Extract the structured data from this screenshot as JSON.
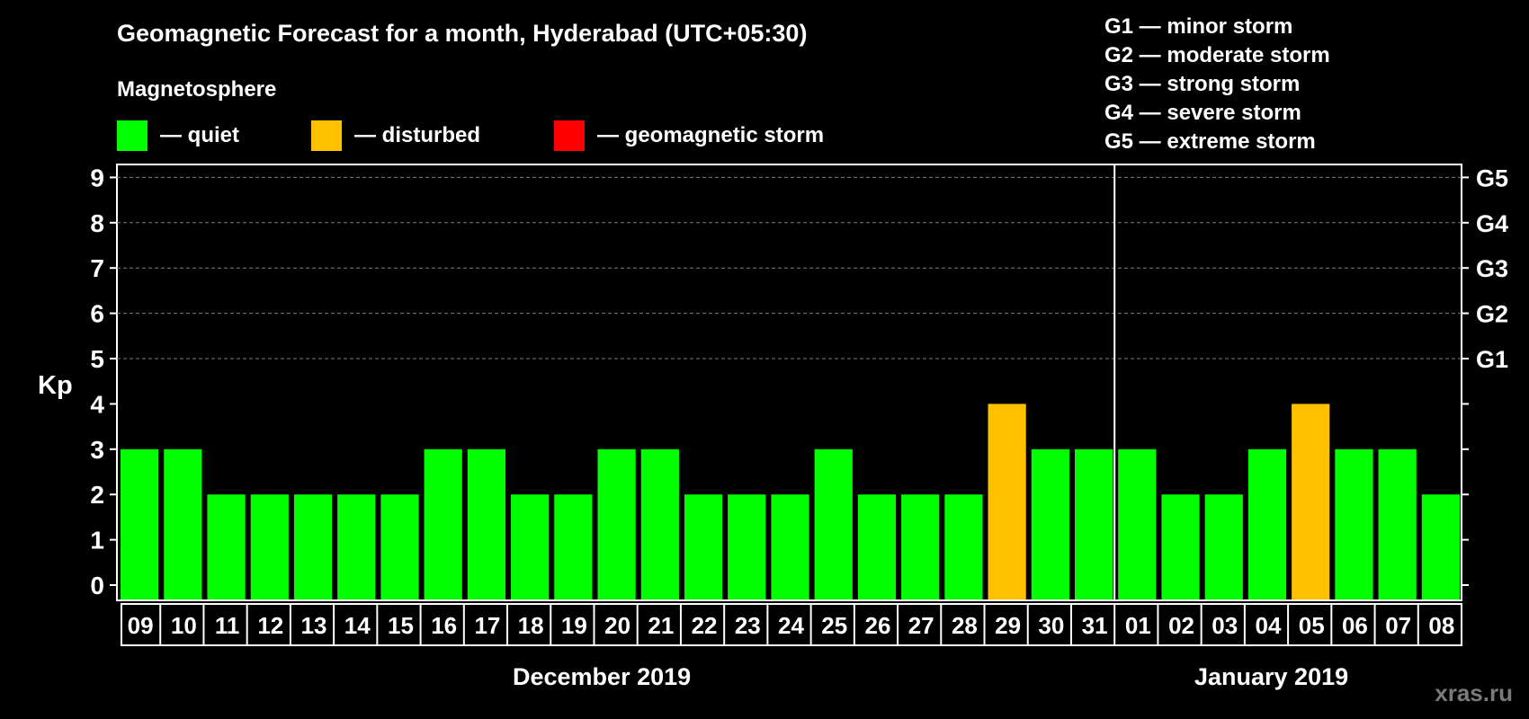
{
  "title": "Geomagnetic Forecast for a month, Hyderabad (UTC+05:30)",
  "legend": {
    "title": "Magnetosphere",
    "items": [
      {
        "label": "— quiet",
        "color": "#00ff00"
      },
      {
        "label": "— disturbed",
        "color": "#ffc000"
      },
      {
        "label": "— geomagnetic storm",
        "color": "#ff0000"
      }
    ]
  },
  "storm_scale": [
    "G1 — minor storm",
    "G2 — moderate storm",
    "G3 — strong storm",
    "G4 — severe storm",
    "G5 — extreme storm"
  ],
  "months": {
    "first": "December 2019",
    "second": "January 2019"
  },
  "watermark": "xras.ru",
  "colors": {
    "quiet": "#00ff00",
    "disturbed": "#ffc000",
    "storm": "#ff0000",
    "background": "#000000",
    "grid": "#808080"
  },
  "chart_data": {
    "type": "bar",
    "ylabel": "Kp",
    "ylim": [
      0,
      9
    ],
    "yticks": [
      "0",
      "1",
      "2",
      "3",
      "4",
      "5",
      "6",
      "7",
      "8",
      "9"
    ],
    "right_ticks": [
      {
        "value": 5,
        "label": "G1"
      },
      {
        "value": 6,
        "label": "G2"
      },
      {
        "value": 7,
        "label": "G3"
      },
      {
        "value": 8,
        "label": "G4"
      },
      {
        "value": 9,
        "label": "G5"
      }
    ],
    "grid": "dashed horizontal at 5-9",
    "categories": [
      "09",
      "10",
      "11",
      "12",
      "13",
      "14",
      "15",
      "16",
      "17",
      "18",
      "19",
      "20",
      "21",
      "22",
      "23",
      "24",
      "25",
      "26",
      "27",
      "28",
      "29",
      "30",
      "31",
      "01",
      "02",
      "03",
      "04",
      "05",
      "06",
      "07",
      "08"
    ],
    "values": [
      3,
      3,
      2,
      2,
      2,
      2,
      2,
      3,
      3,
      2,
      2,
      3,
      3,
      2,
      2,
      2,
      3,
      2,
      2,
      2,
      4,
      3,
      3,
      3,
      2,
      2,
      3,
      4,
      3,
      3,
      2
    ],
    "status": [
      "quiet",
      "quiet",
      "quiet",
      "quiet",
      "quiet",
      "quiet",
      "quiet",
      "quiet",
      "quiet",
      "quiet",
      "quiet",
      "quiet",
      "quiet",
      "quiet",
      "quiet",
      "quiet",
      "quiet",
      "quiet",
      "quiet",
      "quiet",
      "disturbed",
      "quiet",
      "quiet",
      "quiet",
      "quiet",
      "quiet",
      "quiet",
      "disturbed",
      "quiet",
      "quiet",
      "quiet"
    ]
  }
}
